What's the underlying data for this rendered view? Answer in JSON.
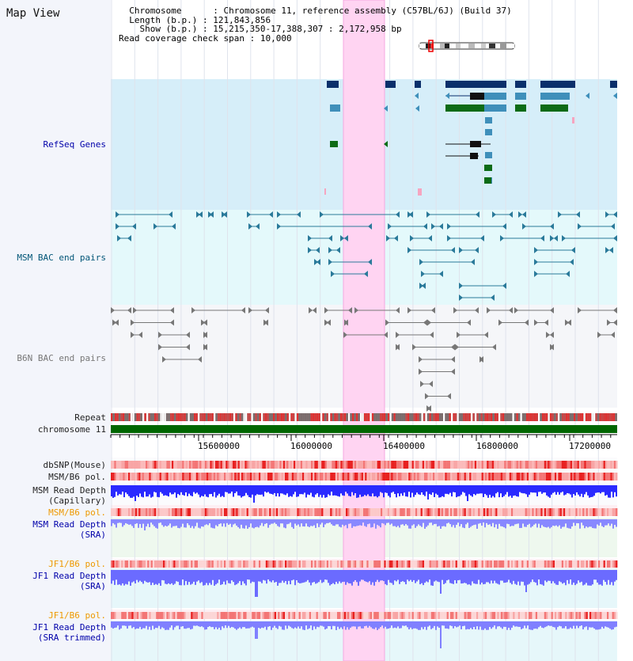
{
  "header": {
    "title": "Map View",
    "chromosome_key": "Chromosome",
    "chromosome_value": "Chromosome 11, reference assembly (C57BL/6J) (Build 37)",
    "length_key": "Length (b.p.)",
    "length_value": "121,843,856",
    "show_key": "Show (b.p.)",
    "show_value": "15,215,350-17,388,307 : 2,172,958 bp",
    "coverage_key": "Read coverage check span",
    "coverage_value": "10,000"
  },
  "tracks": {
    "refseq": "RefSeq Genes",
    "msm_bac": "MSM BAC end pairs",
    "b6n_bac": "B6N BAC end pairs",
    "repeat": "Repeat",
    "chromosome": "chromosome 11",
    "dbsnp": "dbSNP(Mouse)",
    "msm_b6_pol": "MSM/B6 pol.",
    "msm_depth_cap_1": "MSM Read Depth",
    "msm_depth_cap_2": "(Capillary)",
    "msm_b6_pol_sra": "MSM/B6 pol.",
    "msm_depth_sra_1": "MSM Read Depth",
    "msm_depth_sra_2": "(SRA)",
    "jf1_b6_pol": "JF1/B6 pol.",
    "jf1_depth_sra_1": "JF1 Read Depth",
    "jf1_depth_sra_2": "(SRA)",
    "jf1_b6_pol_trim": "JF1/B6 pol.",
    "jf1_depth_trim_1": "JF1 Read Depth",
    "jf1_depth_trim_2": "(SRA trimmed)"
  },
  "axis": {
    "ticks": [
      "15600000",
      "16000000",
      "16400000",
      "16800000",
      "17200000"
    ]
  },
  "colors": {
    "refseq_bg": "#d6eef9",
    "msm_bg": "#e4f9fb",
    "b6n_bg": "#f5f6f9",
    "highlight": "#ffd4f2",
    "gene_dark": "#0b2f6b",
    "gene_mid": "#3f8fba",
    "gene_green": "#0d6b16",
    "chromosome_bar": "#006600",
    "depth_blue": "#3333ff",
    "depth_light": "#8f8fff",
    "snp_red": "#ee5555"
  }
}
